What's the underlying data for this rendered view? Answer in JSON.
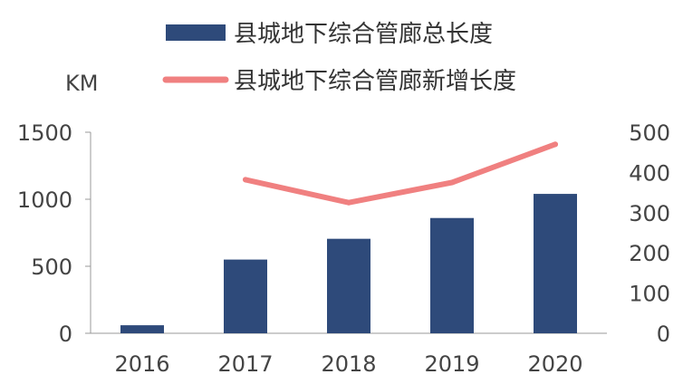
{
  "chart_data": {
    "type": "bar",
    "title": "",
    "categories": [
      "2016",
      "2017",
      "2018",
      "2019",
      "2020"
    ],
    "series": [
      {
        "name": "县城地下综合管廊总长度",
        "type": "bar",
        "axis": "left",
        "color": "#2e4a7a",
        "values": [
          60,
          550,
          705,
          860,
          1040
        ]
      },
      {
        "name": "县城地下综合管廊新增长度",
        "type": "line",
        "axis": "right",
        "color": "#f08080",
        "values": [
          null,
          382,
          325,
          375,
          470
        ]
      }
    ],
    "y_left": {
      "label": "KM",
      "ylim": [
        0,
        1500
      ],
      "ticks": [
        "0",
        "500",
        "1000",
        "1500"
      ]
    },
    "y_right": {
      "label": "",
      "ylim": [
        0,
        500
      ],
      "ticks": [
        "0",
        "100",
        "200",
        "300",
        "400",
        "500"
      ]
    },
    "grid": false,
    "legend_position": "top"
  }
}
